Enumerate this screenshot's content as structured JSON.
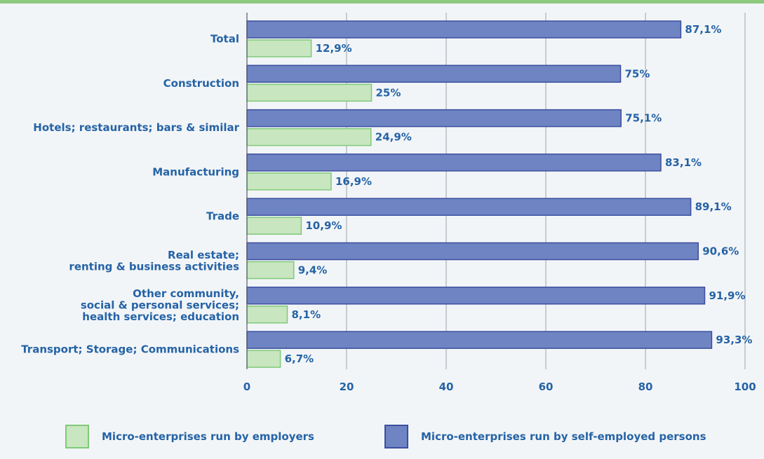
{
  "colors": {
    "top_bar": "#8dc97f",
    "employers_fill": "#c8e6bf",
    "employers_stroke": "#7fc97a",
    "self_fill": "#6f84c2",
    "self_stroke": "#3b4fa0",
    "text": "#2563a6"
  },
  "chart_data": {
    "type": "bar",
    "orientation": "horizontal",
    "categories": [
      [
        "Total"
      ],
      [
        "Construction"
      ],
      [
        "Hotels; restaurants; bars & similar"
      ],
      [
        "Manufacturing"
      ],
      [
        "Trade"
      ],
      [
        "Real estate;",
        "renting & business activities"
      ],
      [
        "Other community,",
        "social & personal services;",
        "health services; education"
      ],
      [
        "Transport; Storage; Communications"
      ]
    ],
    "series": [
      {
        "name": "Micro-enterprises run by self-employed persons",
        "values": [
          87.1,
          75,
          75.1,
          83.1,
          89.1,
          90.6,
          91.9,
          93.3
        ],
        "labels": [
          "87,1%",
          "75%",
          "75,1%",
          "83,1%",
          "89,1%",
          "90,6%",
          "91,9%",
          "93,3%"
        ]
      },
      {
        "name": "Micro-enterprises run by employers",
        "values": [
          12.9,
          25,
          24.9,
          16.9,
          10.9,
          9.4,
          8.1,
          6.7
        ],
        "labels": [
          "12,9%",
          "25%",
          "24,9%",
          "16,9%",
          "10,9%",
          "9,4%",
          "8,1%",
          "6,7%"
        ]
      }
    ],
    "xlim": [
      0,
      100
    ],
    "xticks": [
      0,
      20,
      40,
      60,
      80,
      100
    ],
    "grid": true,
    "legend_position": "bottom"
  },
  "legend": {
    "employers": "Micro-enterprises run by employers",
    "self_employed": "Micro-enterprises run by self-employed persons"
  }
}
